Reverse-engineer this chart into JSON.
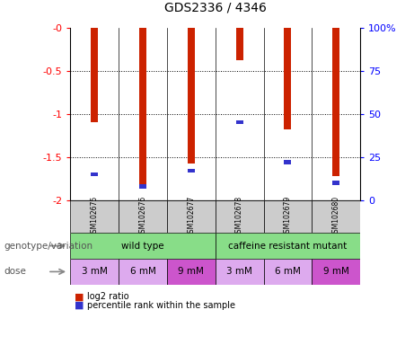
{
  "title": "GDS2336 / 4346",
  "samples": [
    "GSM102675",
    "GSM102676",
    "GSM102677",
    "GSM102678",
    "GSM102679",
    "GSM102680"
  ],
  "log2_ratio": [
    -1.1,
    -1.83,
    -1.58,
    -0.38,
    -1.18,
    -1.72
  ],
  "percentile_rank": [
    15,
    8,
    17,
    45,
    22,
    10
  ],
  "left_ylim": [
    -2.0,
    0.0
  ],
  "right_ylim": [
    0,
    100
  ],
  "yticks_left": [
    0,
    -0.5,
    -1.0,
    -1.5,
    -2.0
  ],
  "ytick_labels_left": [
    "-0",
    "-0.5",
    "-1",
    "-1.5",
    "-2"
  ],
  "yticks_right": [
    0,
    25,
    50,
    75,
    100
  ],
  "ytick_labels_right": [
    "0",
    "25",
    "50",
    "75",
    "100%"
  ],
  "red_color": "#cc2200",
  "blue_color": "#3333cc",
  "sample_bg_color": "#cccccc",
  "genotype_wt_color": "#88dd88",
  "genotype_caf_color": "#88dd88",
  "dose_light_color": "#ddaaee",
  "dose_dark_color": "#cc55cc",
  "legend_red": "log2 ratio",
  "legend_blue": "percentile rank within the sample",
  "genotype_label": "genotype/variation",
  "dose_label": "dose",
  "dose_labels": [
    "3 mM",
    "6 mM",
    "9 mM",
    "3 mM",
    "6 mM",
    "9 mM"
  ]
}
